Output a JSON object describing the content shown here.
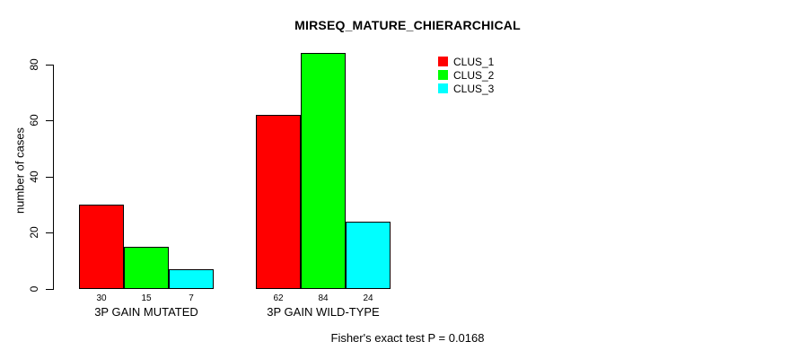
{
  "chart_data": {
    "type": "bar",
    "title": "MIRSEQ_MATURE_CHIERARCHICAL",
    "ylabel": "number of cases",
    "xlabel": "",
    "categories": [
      "3P GAIN MUTATED",
      "3P GAIN WILD-TYPE"
    ],
    "series": [
      {
        "name": "CLUS_1",
        "color": "#ff0000",
        "values": [
          30,
          62
        ]
      },
      {
        "name": "CLUS_2",
        "color": "#00ff00",
        "values": [
          15,
          84
        ]
      },
      {
        "name": "CLUS_3",
        "color": "#00ffff",
        "values": [
          7,
          24
        ]
      }
    ],
    "yticks": [
      0,
      20,
      40,
      60,
      80
    ],
    "ylim": [
      0,
      80
    ],
    "grid": false,
    "bar_value_labels_shown": true,
    "legend_position": "top-right-inside",
    "legend_entries": [
      "CLUS_1",
      "CLUS_2",
      "CLUS_3"
    ],
    "annotation": "Fisher's exact test P = 0.0168"
  }
}
